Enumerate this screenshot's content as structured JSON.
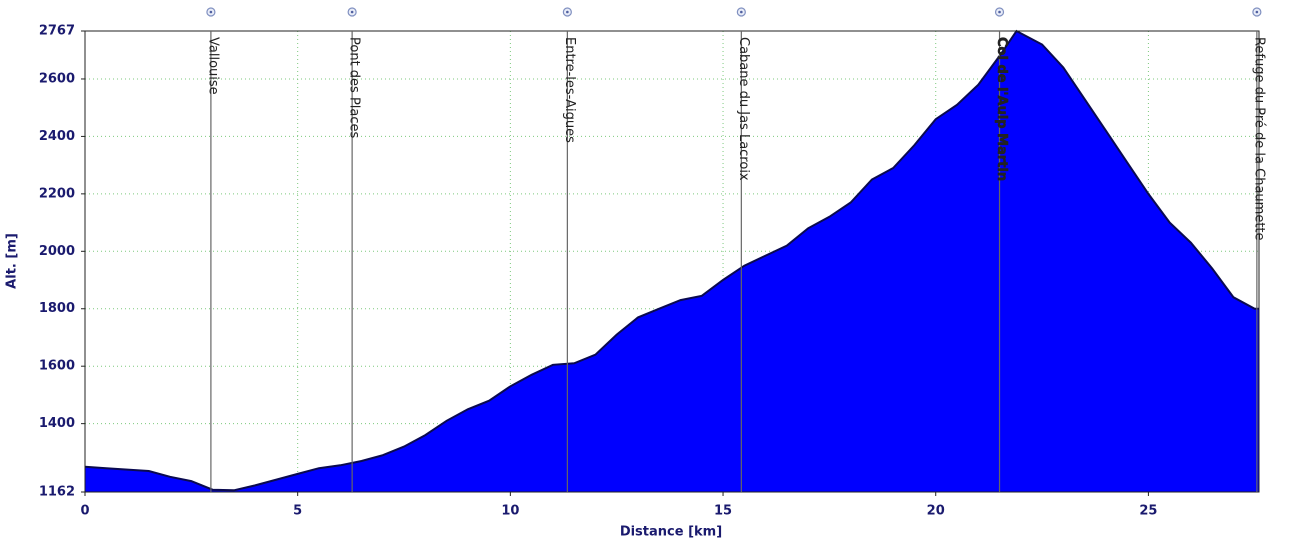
{
  "chart_data": {
    "type": "area",
    "x_label": "Distance [km]",
    "y_label": "Alt. [m]",
    "x": [
      0,
      0.5,
      1,
      1.5,
      2,
      2.5,
      3,
      3.5,
      4,
      4.5,
      5,
      5.5,
      6,
      6.5,
      7,
      7.5,
      8,
      8.5,
      9,
      9.5,
      10,
      10.5,
      11,
      11.5,
      12,
      12.5,
      13,
      13.5,
      14,
      14.5,
      15,
      15.5,
      16,
      16.5,
      17,
      17.5,
      18,
      18.5,
      19,
      19.5,
      20,
      20.5,
      21,
      21.5,
      21.9,
      22.5,
      23,
      23.5,
      24,
      24.5,
      25,
      25.5,
      26,
      26.5,
      27,
      27.5,
      27.6
    ],
    "values": [
      1250,
      1245,
      1240,
      1235,
      1215,
      1200,
      1170,
      1168,
      1185,
      1205,
      1225,
      1245,
      1255,
      1270,
      1290,
      1320,
      1360,
      1410,
      1450,
      1480,
      1530,
      1570,
      1605,
      1610,
      1640,
      1710,
      1770,
      1800,
      1830,
      1845,
      1900,
      1950,
      1985,
      2020,
      2080,
      2120,
      2170,
      2250,
      2290,
      2370,
      2460,
      2510,
      2580,
      2680,
      2767,
      2720,
      2640,
      2530,
      2420,
      2310,
      2200,
      2100,
      2030,
      1940,
      1840,
      1800,
      1800
    ],
    "color": "#0000ff",
    "line_color": "#0a0a50",
    "xlim": [
      0,
      27.6
    ],
    "ylim": [
      1162,
      2767
    ],
    "xticks": [
      0,
      5,
      10,
      15,
      20,
      25
    ],
    "yticks": [
      1162,
      1400,
      1600,
      1800,
      2000,
      2200,
      2400,
      2600,
      2767
    ],
    "grid": true,
    "waypoints": [
      {
        "name": "Vallouise",
        "x": 2.96
      },
      {
        "name": "Pont des Places",
        "x": 6.28
      },
      {
        "name": "Entre-les-Aigues",
        "x": 11.34
      },
      {
        "name": "Cabane du Jas Lacroix",
        "x": 15.43
      },
      {
        "name": "Col de l'Aulp Martin",
        "x": 21.5
      },
      {
        "name": "Refuge du Pré de la Chaumette",
        "x": 27.55
      }
    ]
  }
}
